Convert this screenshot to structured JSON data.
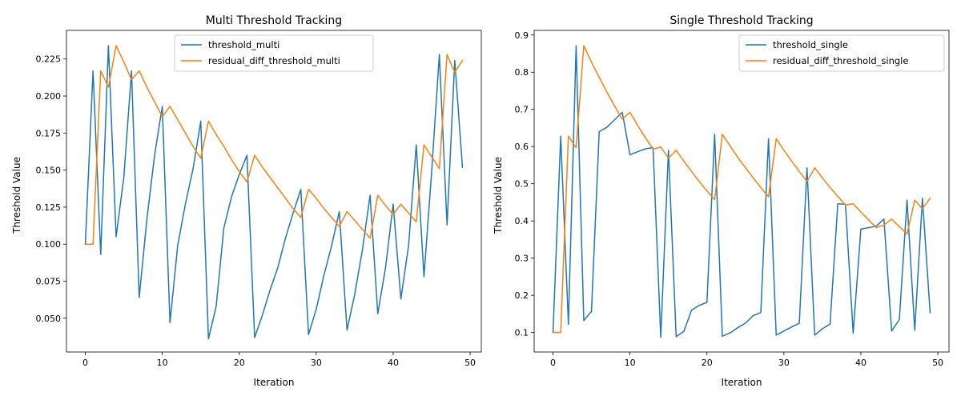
{
  "chart_data": [
    {
      "type": "line",
      "title": "Multi Threshold Tracking",
      "xlabel": "Iteration",
      "ylabel": "Threshold Value",
      "xlim": [
        -2.45,
        51.45
      ],
      "ylim": [
        0.0272,
        0.2443
      ],
      "xticks": [
        0,
        10,
        20,
        30,
        40,
        50
      ],
      "xtick_labels": [
        "0",
        "10",
        "20",
        "30",
        "40",
        "50"
      ],
      "yticks": [
        0.05,
        0.075,
        0.1,
        0.125,
        0.15,
        0.175,
        0.2,
        0.225
      ],
      "ytick_labels": [
        "0.050",
        "0.075",
        "0.100",
        "0.125",
        "0.150",
        "0.175",
        "0.200",
        "0.225"
      ],
      "grid": false,
      "legend_position": "upper center",
      "series": [
        {
          "name": "threshold_multi",
          "color": "#1f77b4",
          "x": [
            0,
            1,
            2,
            3,
            4,
            5,
            6,
            7,
            8,
            9,
            10,
            11,
            12,
            13,
            14,
            15,
            16,
            17,
            18,
            19,
            20,
            21,
            22,
            23,
            24,
            25,
            26,
            27,
            28,
            29,
            30,
            31,
            32,
            33,
            34,
            35,
            36,
            37,
            38,
            39,
            40,
            41,
            42,
            43,
            44,
            45,
            46,
            47,
            48,
            49
          ],
          "values": [
            0.1,
            0.217,
            0.093,
            0.234,
            0.105,
            0.145,
            0.217,
            0.064,
            0.117,
            0.16,
            0.193,
            0.047,
            0.099,
            0.127,
            0.151,
            0.183,
            0.036,
            0.058,
            0.111,
            0.132,
            0.147,
            0.16,
            0.037,
            0.052,
            0.069,
            0.084,
            0.104,
            0.121,
            0.137,
            0.039,
            0.056,
            0.079,
            0.099,
            0.122,
            0.042,
            0.066,
            0.096,
            0.133,
            0.053,
            0.084,
            0.127,
            0.063,
            0.099,
            0.167,
            0.078,
            0.149,
            0.228,
            0.113,
            0.224,
            0.152
          ]
        },
        {
          "name": "residual_diff_threshold_multi",
          "color": "#ff7f0e",
          "x": [
            0,
            1,
            2,
            3,
            4,
            5,
            6,
            7,
            8,
            9,
            10,
            11,
            12,
            13,
            14,
            15,
            16,
            17,
            18,
            19,
            20,
            21,
            22,
            23,
            24,
            25,
            26,
            27,
            28,
            29,
            30,
            31,
            32,
            33,
            34,
            35,
            36,
            37,
            38,
            39,
            40,
            41,
            42,
            43,
            44,
            45,
            46,
            47,
            48,
            49
          ],
          "values": [
            0.1,
            0.1,
            0.217,
            0.206,
            0.234,
            0.223,
            0.211,
            0.217,
            0.206,
            0.196,
            0.186,
            0.193,
            0.184,
            0.175,
            0.166,
            0.158,
            0.183,
            0.174,
            0.166,
            0.157,
            0.149,
            0.142,
            0.16,
            0.152,
            0.145,
            0.138,
            0.131,
            0.124,
            0.118,
            0.137,
            0.131,
            0.124,
            0.118,
            0.112,
            0.122,
            0.116,
            0.11,
            0.104,
            0.133,
            0.126,
            0.12,
            0.127,
            0.121,
            0.115,
            0.167,
            0.159,
            0.151,
            0.228,
            0.216,
            0.224
          ]
        }
      ]
    },
    {
      "type": "line",
      "title": "Single Threshold Tracking",
      "xlabel": "Iteration",
      "ylabel": "Threshold Value",
      "xlim": [
        -2.45,
        51.45
      ],
      "ylim": [
        0.0476,
        0.9124
      ],
      "xticks": [
        0,
        10,
        20,
        30,
        40,
        50
      ],
      "xtick_labels": [
        "0",
        "10",
        "20",
        "30",
        "40",
        "50"
      ],
      "yticks": [
        0.1,
        0.2,
        0.3,
        0.4,
        0.5,
        0.6,
        0.7,
        0.8,
        0.9
      ],
      "ytick_labels": [
        "0.1",
        "0.2",
        "0.3",
        "0.4",
        "0.5",
        "0.6",
        "0.7",
        "0.8",
        "0.9"
      ],
      "grid": false,
      "legend_position": "upper right",
      "series": [
        {
          "name": "threshold_single",
          "color": "#1f77b4",
          "x": [
            0,
            1,
            2,
            3,
            4,
            5,
            6,
            7,
            8,
            9,
            10,
            11,
            12,
            13,
            14,
            15,
            16,
            17,
            18,
            19,
            20,
            21,
            22,
            23,
            24,
            25,
            26,
            27,
            28,
            29,
            30,
            31,
            32,
            33,
            34,
            35,
            36,
            37,
            38,
            39,
            40,
            41,
            42,
            43,
            44,
            45,
            46,
            47,
            48,
            49
          ],
          "values": [
            0.1,
            0.628,
            0.122,
            0.871,
            0.132,
            0.157,
            0.64,
            0.652,
            0.672,
            0.692,
            0.578,
            0.586,
            0.594,
            0.597,
            0.087,
            0.59,
            0.089,
            0.103,
            0.16,
            0.173,
            0.181,
            0.633,
            0.09,
            0.099,
            0.113,
            0.125,
            0.145,
            0.154,
            0.621,
            0.093,
            0.104,
            0.115,
            0.125,
            0.543,
            0.093,
            0.11,
            0.123,
            0.446,
            0.445,
            0.098,
            0.378,
            0.382,
            0.386,
            0.405,
            0.104,
            0.135,
            0.456,
            0.106,
            0.461,
            0.153
          ]
        },
        {
          "name": "residual_diff_threshold_single",
          "color": "#ff7f0e",
          "x": [
            0,
            1,
            2,
            3,
            4,
            5,
            6,
            7,
            8,
            9,
            10,
            11,
            12,
            13,
            14,
            15,
            16,
            17,
            18,
            19,
            20,
            21,
            22,
            23,
            24,
            25,
            26,
            27,
            28,
            29,
            30,
            31,
            32,
            33,
            34,
            35,
            36,
            37,
            38,
            39,
            40,
            41,
            42,
            43,
            44,
            45,
            46,
            47,
            48,
            49
          ],
          "values": [
            0.1,
            0.1,
            0.628,
            0.597,
            0.871,
            0.827,
            0.786,
            0.747,
            0.709,
            0.674,
            0.692,
            0.657,
            0.624,
            0.593,
            0.599,
            0.569,
            0.59,
            0.561,
            0.533,
            0.506,
            0.481,
            0.457,
            0.633,
            0.602,
            0.571,
            0.543,
            0.516,
            0.49,
            0.465,
            0.621,
            0.59,
            0.561,
            0.533,
            0.506,
            0.543,
            0.516,
            0.49,
            0.466,
            0.443,
            0.446,
            0.424,
            0.403,
            0.382,
            0.389,
            0.405,
            0.385,
            0.365,
            0.456,
            0.433,
            0.461
          ]
        }
      ]
    }
  ]
}
